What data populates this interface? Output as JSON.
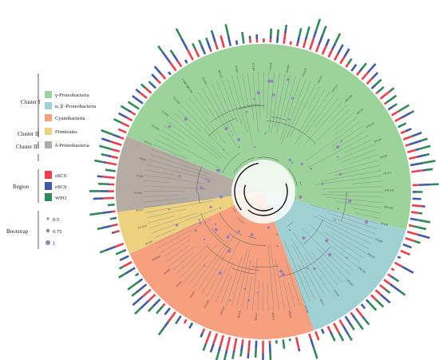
{
  "legend": {
    "clusters": [
      {
        "label": "Cluster I",
        "items": [
          {
            "label": "γ-Proteobacteria",
            "color": "#9bd39b"
          },
          {
            "label": "α, β -Proteobacteria",
            "color": "#9fd0d4"
          },
          {
            "label": "Cyanobacteria",
            "color": "#f6a07f"
          }
        ]
      },
      {
        "label": "Cluster II",
        "items": [
          {
            "label": "Firmicutes",
            "color": "#ecd27f"
          }
        ]
      },
      {
        "label": "Cluster III",
        "items": [
          {
            "label": "δ-Proteobacteria",
            "color": "#b5aba5"
          }
        ]
      }
    ],
    "region": {
      "label": "Region",
      "items": [
        {
          "label": "sSCS",
          "color": "#ef3e4a"
        },
        {
          "label": "eSCS",
          "color": "#3f5aa8"
        },
        {
          "label": "WPO",
          "color": "#2e8b57"
        }
      ]
    },
    "bootstrap": {
      "label": "Bootstrap",
      "items": [
        {
          "label": "0.5",
          "value": 0.5
        },
        {
          "label": "0.75",
          "value": 0.75
        },
        {
          "label": "1",
          "value": 1
        }
      ]
    }
  },
  "tree": {
    "clades": [
      {
        "name": "γ-Proteobacteria",
        "color": "#9bd39b",
        "start_deg": -158,
        "end_deg": 15
      },
      {
        "name": "α, β -Proteobacteria",
        "color": "#9fd0d4",
        "start_deg": 15,
        "end_deg": 70
      },
      {
        "name": "Cyanobacteria",
        "color": "#f6a07f",
        "start_deg": 70,
        "end_deg": 155
      },
      {
        "name": "Firmicutes",
        "color": "#ecd27f",
        "start_deg": 155,
        "end_deg": 172
      },
      {
        "name": "δ-Proteobacteria",
        "color": "#b5aba5",
        "start_deg": 172,
        "end_deg": 202
      }
    ],
    "tip_count": 140,
    "tip_labels": [
      "OTU16",
      "OTU112",
      "OTU74",
      "OTU133",
      "WP 168012863.1",
      "OTU22",
      "OTU98",
      "OTU10",
      "OTU75",
      "OTU58",
      "OTU94",
      "OTU118",
      "OTU121",
      "OTU111",
      "OTU128",
      "OTU20",
      "OTU132",
      "OTU30",
      "OTU67",
      "OTU71",
      "OTU145",
      "OTU138",
      "OTU81",
      "OTU48",
      "OTU19",
      "OTU119",
      "OTU48",
      "OTU12",
      "OTU21",
      "OTU40",
      "OTU94",
      "OTU11",
      "OTU80",
      "OTU95",
      "OTU103",
      "OTU125",
      "OTU97",
      "OTU51",
      "OTU40",
      "OTU102",
      "OTU56",
      "OTU124",
      "OTU30",
      "OTU15",
      "OTU2",
      "OTU23"
    ]
  }
}
